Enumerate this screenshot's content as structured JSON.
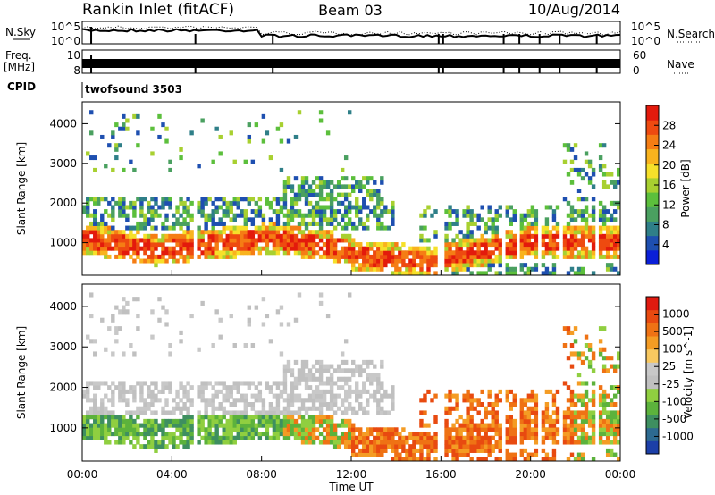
{
  "header": {
    "title": "Rankin Inlet (fitACF)",
    "beam": "Beam 03",
    "date": "10/Aug/2014"
  },
  "top_panels": {
    "nsky_label": "N.Sky",
    "nsky_ticks": [
      "10^5",
      "10^0"
    ],
    "nsearch_label": "N.Search",
    "nsearch_ticks": [
      "10^5",
      "10^0"
    ],
    "freq_label": "Freq.",
    "freq_unit": "[MHz]",
    "freq_ticks": [
      "10",
      "8"
    ],
    "nave_label": "Nave",
    "nave_ticks": [
      "60",
      "0"
    ],
    "cpid_label": "CPID",
    "cpid_value": "twofsound 3503",
    "gap_hours": [
      5.05,
      8.5,
      15.9,
      16.1,
      18.8,
      19.5,
      20.4,
      21.3,
      22.95
    ]
  },
  "chart_data": [
    {
      "type": "heatmap",
      "name": "power",
      "ylabel": "Slant Range [km]",
      "yticks": [
        "4000",
        "3000",
        "2000",
        "1000"
      ],
      "ylim": [
        180,
        4550
      ],
      "xlim": [
        0,
        24
      ],
      "colorbar_label": "Power [dB]",
      "colorbar_ticks": [
        "28",
        "24",
        "20",
        "16",
        "12",
        "8",
        "4"
      ],
      "colorbar_colors": [
        "#0a1fd8",
        "#1e4fb0",
        "#2f7f88",
        "#4aa060",
        "#5cbf3c",
        "#a8d030",
        "#f6e02a",
        "#f9b31e",
        "#f57d14",
        "#ee4a10",
        "#e31a0c"
      ]
    },
    {
      "type": "heatmap",
      "name": "velocity",
      "ylabel": "Slant Range [km]",
      "yticks": [
        "4000",
        "3000",
        "2000",
        "1000"
      ],
      "ylim": [
        180,
        4550
      ],
      "xlim": [
        0,
        24
      ],
      "xticks": [
        "00:00",
        "04:00",
        "08:00",
        "12:00",
        "16:00",
        "20:00",
        "00:00"
      ],
      "xlabel": "Time UT",
      "colorbar_label": "Velocity [m s^-1]",
      "colorbar_ticks": [
        "1000",
        "500",
        "100",
        "25",
        "-25",
        "-100",
        "-500",
        "-1000"
      ],
      "colorbar_colors": [
        "#1c3fa8",
        "#2d6a90",
        "#3e8f60",
        "#5cb23c",
        "#90cf40",
        "#c0c0c0",
        "#c8c8c8",
        "#f8c860",
        "#f49c24",
        "#ef7214",
        "#e84a10",
        "#e01a10"
      ]
    }
  ]
}
